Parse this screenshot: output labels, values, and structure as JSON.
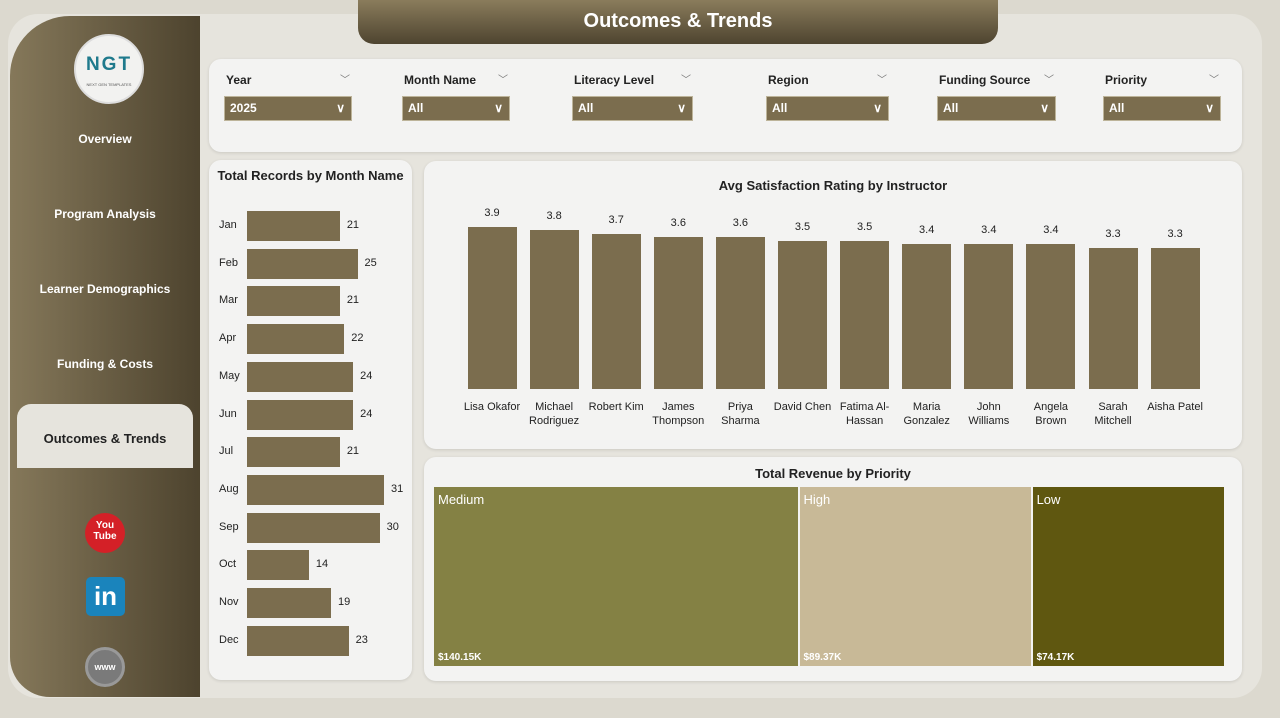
{
  "title": "Outcomes & Trends",
  "logo": {
    "text": "NGT",
    "subtext": "NEXT GEN TEMPLATES"
  },
  "sidebar": {
    "items": [
      {
        "label": "Overview"
      },
      {
        "label": "Program Analysis"
      },
      {
        "label": "Learner Demographics"
      },
      {
        "label": "Funding & Costs"
      },
      {
        "label": "Outcomes & Trends",
        "active": true
      }
    ],
    "social": [
      "youtube-icon",
      "linkedin-icon",
      "globe-www-icon"
    ]
  },
  "filters": [
    {
      "label": "Year",
      "value": "2025"
    },
    {
      "label": "Month Name",
      "value": "All"
    },
    {
      "label": "Literacy Level",
      "value": "All"
    },
    {
      "label": "Region",
      "value": "All"
    },
    {
      "label": "Funding Source",
      "value": "All"
    },
    {
      "label": "Priority",
      "value": "All"
    }
  ],
  "colors": {
    "bar": "#7b6d4e",
    "medium": "#848144",
    "high": "#c8b997",
    "low": "#5f5710"
  },
  "chart_data": [
    {
      "type": "bar",
      "orientation": "horizontal",
      "title": "Total Records by Month Name",
      "categories": [
        "Jan",
        "Feb",
        "Mar",
        "Apr",
        "May",
        "Jun",
        "Jul",
        "Aug",
        "Sep",
        "Oct",
        "Nov",
        "Dec"
      ],
      "values": [
        21,
        25,
        21,
        22,
        24,
        24,
        21,
        31,
        30,
        14,
        19,
        23
      ]
    },
    {
      "type": "bar",
      "title": "Avg Satisfaction Rating by Instructor",
      "categories": [
        "Lisa Okafor",
        "Michael Rodriguez",
        "Robert Kim",
        "James Thompson",
        "Priya Sharma",
        "David Chen",
        "Fatima Al-Hassan",
        "Maria Gonzalez",
        "John Williams",
        "Angela Brown",
        "Sarah Mitchell",
        "Aisha Patel"
      ],
      "values": [
        3.9,
        3.8,
        3.7,
        3.6,
        3.6,
        3.5,
        3.5,
        3.4,
        3.4,
        3.4,
        3.3,
        3.3
      ]
    },
    {
      "type": "treemap",
      "title": "Total Revenue by Priority",
      "categories": [
        "Medium",
        "High",
        "Low"
      ],
      "values": [
        140.15,
        89.37,
        74.17
      ],
      "labels": [
        "$140.15K",
        "$89.37K",
        "$74.17K"
      ]
    }
  ]
}
